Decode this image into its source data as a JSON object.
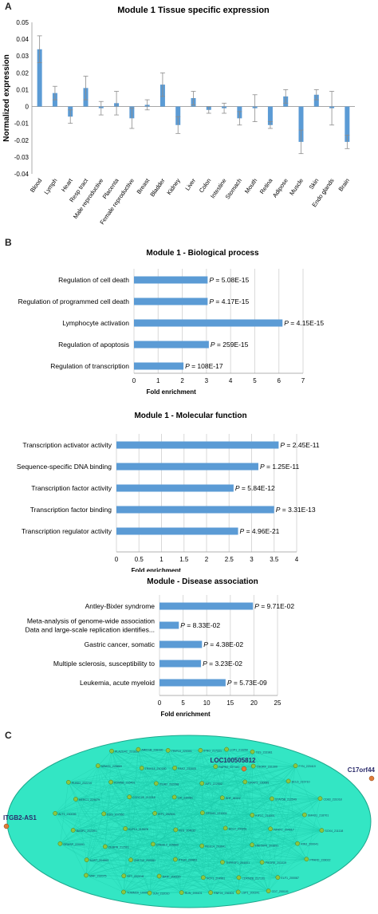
{
  "panels": {
    "a": "A",
    "b": "B",
    "c": "C"
  },
  "colors": {
    "bar": "#5b9bd5",
    "err": "#8c8c8c",
    "grid": "#d9d9d9",
    "net_fill": "#33e6c4",
    "node": "#8dc63f",
    "hub_text": "#2b2b6b"
  },
  "chart_data": [
    {
      "type": "bar",
      "title": "Module 1 Tissue specific expression",
      "ylabel": "Normalized expression",
      "xlabel": "",
      "ylim": [
        -0.04,
        0.05
      ],
      "yticks": [
        "0.05",
        "0.04",
        "0.03",
        "0.02",
        "0.01",
        "0",
        "-0.01",
        "-0.02",
        "-0.03",
        "-0.04"
      ],
      "categories": [
        "Blood",
        "Lymph",
        "Heart",
        "Resp tract",
        "Male reproductive",
        "Placenta",
        "Female reproductive",
        "Breast",
        "Bladder",
        "Kidney",
        "Liver",
        "Colon",
        "Intestine",
        "Stomach",
        "Mouth",
        "Retina",
        "Adipose",
        "Muscle",
        "Skin",
        "Endo glands",
        "Brain"
      ],
      "values": [
        0.034,
        0.008,
        -0.006,
        0.011,
        -0.001,
        0.002,
        -0.007,
        0.001,
        0.013,
        -0.011,
        0.005,
        -0.002,
        -0.001,
        -0.007,
        -0.001,
        -0.011,
        0.006,
        -0.021,
        0.007,
        -0.001,
        -0.021
      ],
      "errors": [
        0.008,
        0.004,
        0.004,
        0.007,
        0.004,
        0.007,
        0.006,
        0.003,
        0.007,
        0.005,
        0.004,
        0.002,
        0.003,
        0.004,
        0.008,
        0.002,
        0.004,
        0.007,
        0.003,
        0.01,
        0.004
      ]
    },
    {
      "type": "bar",
      "title": "Module 1 - Biological process",
      "xlabel": "Fold enrichment",
      "xlim": [
        0,
        7
      ],
      "xticks": [
        "0",
        "1",
        "2",
        "3",
        "4",
        "5",
        "6",
        "7"
      ],
      "categories": [
        "Regulation of cell death",
        "Regulation of programmed cell death",
        "Lymphocyte activation",
        "Regulation of apoptosis",
        "Regulation of transcription"
      ],
      "values": [
        3.05,
        3.05,
        6.15,
        3.1,
        2.05
      ],
      "p_labels": [
        "5.08E-15",
        "4.17E-15",
        "4.15E-15",
        "259E-15",
        "108E-17"
      ],
      "p_prefix": "P",
      "p_eq": " = "
    },
    {
      "type": "bar",
      "title": "Module 1 - Molecular function",
      "xlabel": "Fold enrichment",
      "xlim": [
        0,
        4
      ],
      "xticks": [
        "0",
        "0.5",
        "1",
        "1.5",
        "2",
        "2.5",
        "3",
        "3.5",
        "4"
      ],
      "categories": [
        "Transcription activator activity",
        "Sequence-specific DNA binding",
        "Transcription factor activity",
        "Transcription factor binding",
        "Transcription regulator activity"
      ],
      "values": [
        3.6,
        3.15,
        2.6,
        3.5,
        2.7
      ],
      "p_labels": [
        "2.45E-11",
        "1.25E-11",
        "5.84E-12",
        "3.31E-13",
        "4.96E-21"
      ],
      "p_prefix": "P",
      "p_eq": " = "
    },
    {
      "type": "bar",
      "title": "Module - Disease association",
      "xlabel": "Fold enrichment",
      "xlim": [
        0,
        25
      ],
      "xticks": [
        "0",
        "5",
        "10",
        "15",
        "20",
        "25"
      ],
      "categories": [
        "Antley-Bixler syndrome",
        "Meta-analysis of genome-wide association|Data and large-scale replication identifies...",
        "Gastric cancer, somatic",
        "Multiple sclerosis, susceptibility to",
        "Leukemia, acute myeloid"
      ],
      "values": [
        19.8,
        4.1,
        9.0,
        8.8,
        14.0
      ],
      "p_labels": [
        "9.71E-02",
        "8.33E-02",
        "4.38E-02",
        "3.23E-02",
        "5.73E-09"
      ],
      "p_prefix": "P",
      "p_eq": " = "
    }
  ],
  "network": {
    "hubs": [
      "LOC100505812",
      "ITGB2-AS1",
      "C17orf44"
    ],
    "node_labels": [
      "PLA2G4C_231810",
      "NRAS1_225869",
      "PLBD2_232210",
      "HERC1_229879",
      "ALT1_230096",
      "BASP1_202391",
      "GRASP_220091",
      "IL6ST_204863",
      "MAF_232075",
      "TOMM20_100004",
      "ARID1B_238190",
      "TRIM14_210180",
      "KDM5B_216451",
      "CCDC28_212218",
      "EDS_207560",
      "KLF13_219878",
      "CEBPB_212501",
      "ZNF710_200081",
      "SFT_222018",
      "JUN_232010",
      "TRIP10_220301",
      "PAK2_231005",
      "ITGB2_232098",
      "LIX_230081",
      "IRF1_202531",
      "FES_204032",
      "CREBL2_225669",
      "PTGR_209811",
      "BATF_206220",
      "RUN_205101",
      "IFNG_217221",
      "RAPH2_227181",
      "AIF1_222002",
      "SHT_ADD2",
      "GPSM3_221003",
      "BCL2_200251",
      "RGS14_203041",
      "TNFRSF1_204001",
      "NCF1_204961",
      "RNF24_236301",
      "LCP1_213250",
      "C9ORF_231300",
      "GRAP2_230081",
      "STAT5B_212549",
      "KIF1C_214591",
      "NFATC_204017",
      "HNRNPK_203891",
      "PIK3R5_201019",
      "CDKN2B_217131",
      "LSP1_200241",
      "TES_231981",
      "FYN_220419",
      "BCL6_215710",
      "CD83_231018",
      "SMAD1_218701",
      "SOX4_211118",
      "RIN3_200041",
      "PPARD_228022",
      "ELF1_200087",
      "CD7_200101"
    ]
  }
}
